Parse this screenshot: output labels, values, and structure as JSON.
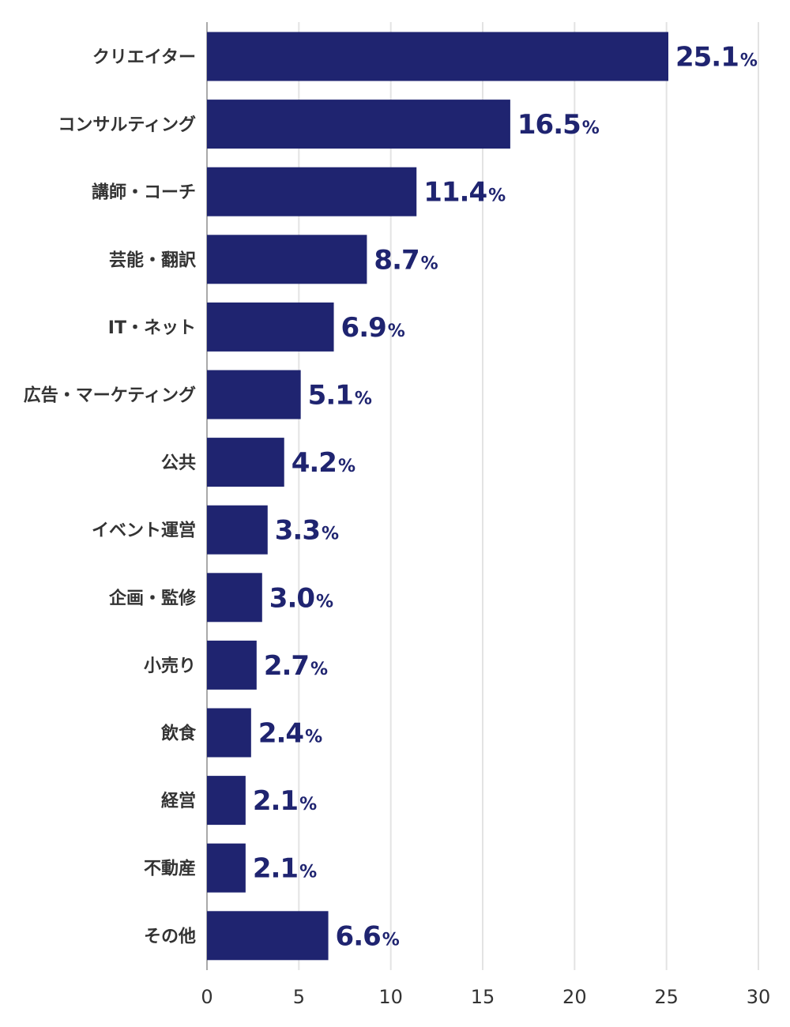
{
  "chart_data": {
    "type": "bar",
    "orientation": "horizontal",
    "categories": [
      "クリエイター",
      "コンサルティング",
      "講師・コーチ",
      "芸能・翻訳",
      "IT・ネット",
      "広告・マーケティング",
      "公共",
      "イベント運営",
      "企画・監修",
      "小売り",
      "飲食",
      "経営",
      "不動産",
      "その他"
    ],
    "values": [
      25.1,
      16.5,
      11.4,
      8.7,
      6.9,
      5.1,
      4.2,
      3.3,
      3.0,
      2.7,
      2.4,
      2.1,
      2.1,
      6.6
    ],
    "value_labels": [
      "25.1",
      "16.5",
      "11.4",
      "8.7",
      "6.9",
      "5.1",
      "4.2",
      "3.3",
      "3.0",
      "2.7",
      "2.4",
      "2.1",
      "2.1",
      "6.6"
    ],
    "value_suffix": "%",
    "x_ticks": [
      "0",
      "5",
      "10",
      "15",
      "20",
      "25",
      "30"
    ],
    "xlim": [
      0,
      30
    ],
    "grid": true,
    "bar_color": "#1f2470",
    "label_color": "#1f2470"
  }
}
